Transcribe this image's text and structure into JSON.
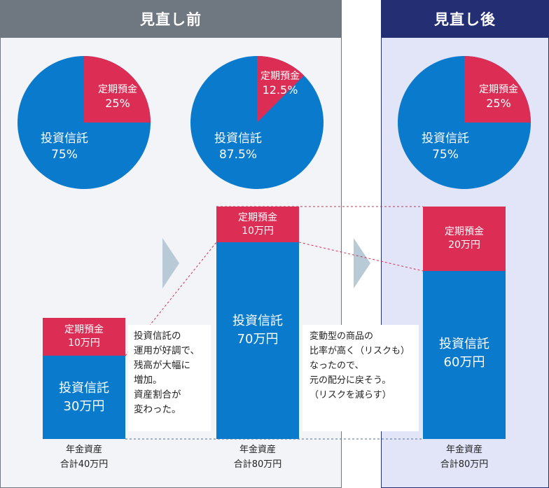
{
  "headers": {
    "before": "見直し前",
    "after": "見直し後"
  },
  "colors": {
    "investment": "#0a7bcc",
    "deposit": "#dc2d55",
    "header_before": "#6f7780",
    "header_after": "#232f72"
  },
  "pies": [
    {
      "deposit_label": "定期預金",
      "deposit_pct": "25%",
      "investment_label": "投資信託",
      "investment_pct": "75%",
      "deposit_share": 0.25
    },
    {
      "deposit_label": "定期預金",
      "deposit_pct": "12.5%",
      "investment_label": "投資信託",
      "investment_pct": "87.5%",
      "deposit_share": 0.125
    },
    {
      "deposit_label": "定期預金",
      "deposit_pct": "25%",
      "investment_label": "投資信託",
      "investment_pct": "75%",
      "deposit_share": 0.25
    }
  ],
  "bars": [
    {
      "deposit_label": "定期預金",
      "deposit_amount": "10万円",
      "investment_label": "投資信託",
      "investment_amount": "30万円",
      "caption_line1": "年金資産",
      "caption_line2": "合計40万円"
    },
    {
      "deposit_label": "定期預金",
      "deposit_amount": "10万円",
      "investment_label": "投資信託",
      "investment_amount": "70万円",
      "caption_line1": "年金資産",
      "caption_line2": "合計80万円"
    },
    {
      "deposit_label": "定期預金",
      "deposit_amount": "20万円",
      "investment_label": "投資信託",
      "investment_amount": "60万円",
      "caption_line1": "年金資産",
      "caption_line2": "合計80万円"
    }
  ],
  "notes": [
    {
      "lines": [
        "投資信託の",
        "運用が好調で、",
        "残高が大幅に",
        "増加。",
        "資産割合が",
        "変わった。"
      ]
    },
    {
      "lines": [
        "変動型の商品の",
        "比率が高く（リスクも）",
        "なったので、",
        "元の配分に戻そう。",
        "（リスクを減らす）"
      ]
    }
  ]
}
